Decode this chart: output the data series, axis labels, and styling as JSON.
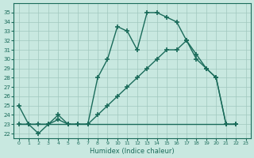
{
  "xlabel": "Humidex (Indice chaleur)",
  "ylabel": "",
  "background_color": "#c8e8e0",
  "line_color": "#1a6b5a",
  "grid_color": "#a0c8be",
  "x_ticks": [
    0,
    1,
    2,
    3,
    4,
    5,
    6,
    7,
    8,
    9,
    10,
    11,
    12,
    13,
    14,
    15,
    16,
    17,
    18,
    19,
    20,
    21,
    22,
    23
  ],
  "y_ticks": [
    22,
    23,
    24,
    25,
    26,
    27,
    28,
    29,
    30,
    31,
    32,
    33,
    34,
    35
  ],
  "ylim": [
    21.5,
    36
  ],
  "xlim": [
    -0.5,
    23.5
  ],
  "series1": [
    25,
    23,
    22,
    23,
    24,
    23,
    23,
    23,
    28,
    30,
    33.5,
    33,
    31,
    35,
    35,
    34.5,
    34,
    32,
    30,
    29,
    28,
    23,
    23
  ],
  "series2": [
    23,
    23,
    23,
    23,
    23.5,
    23,
    23,
    23,
    24,
    25,
    26,
    27,
    28,
    29,
    30,
    31,
    31,
    32,
    30.5,
    29,
    28,
    23,
    23
  ],
  "series3": [
    23,
    23,
    23,
    23,
    23,
    23,
    23,
    23,
    23,
    23,
    23,
    23,
    23,
    23,
    23,
    23,
    23,
    23,
    23,
    23,
    23,
    23,
    23
  ]
}
